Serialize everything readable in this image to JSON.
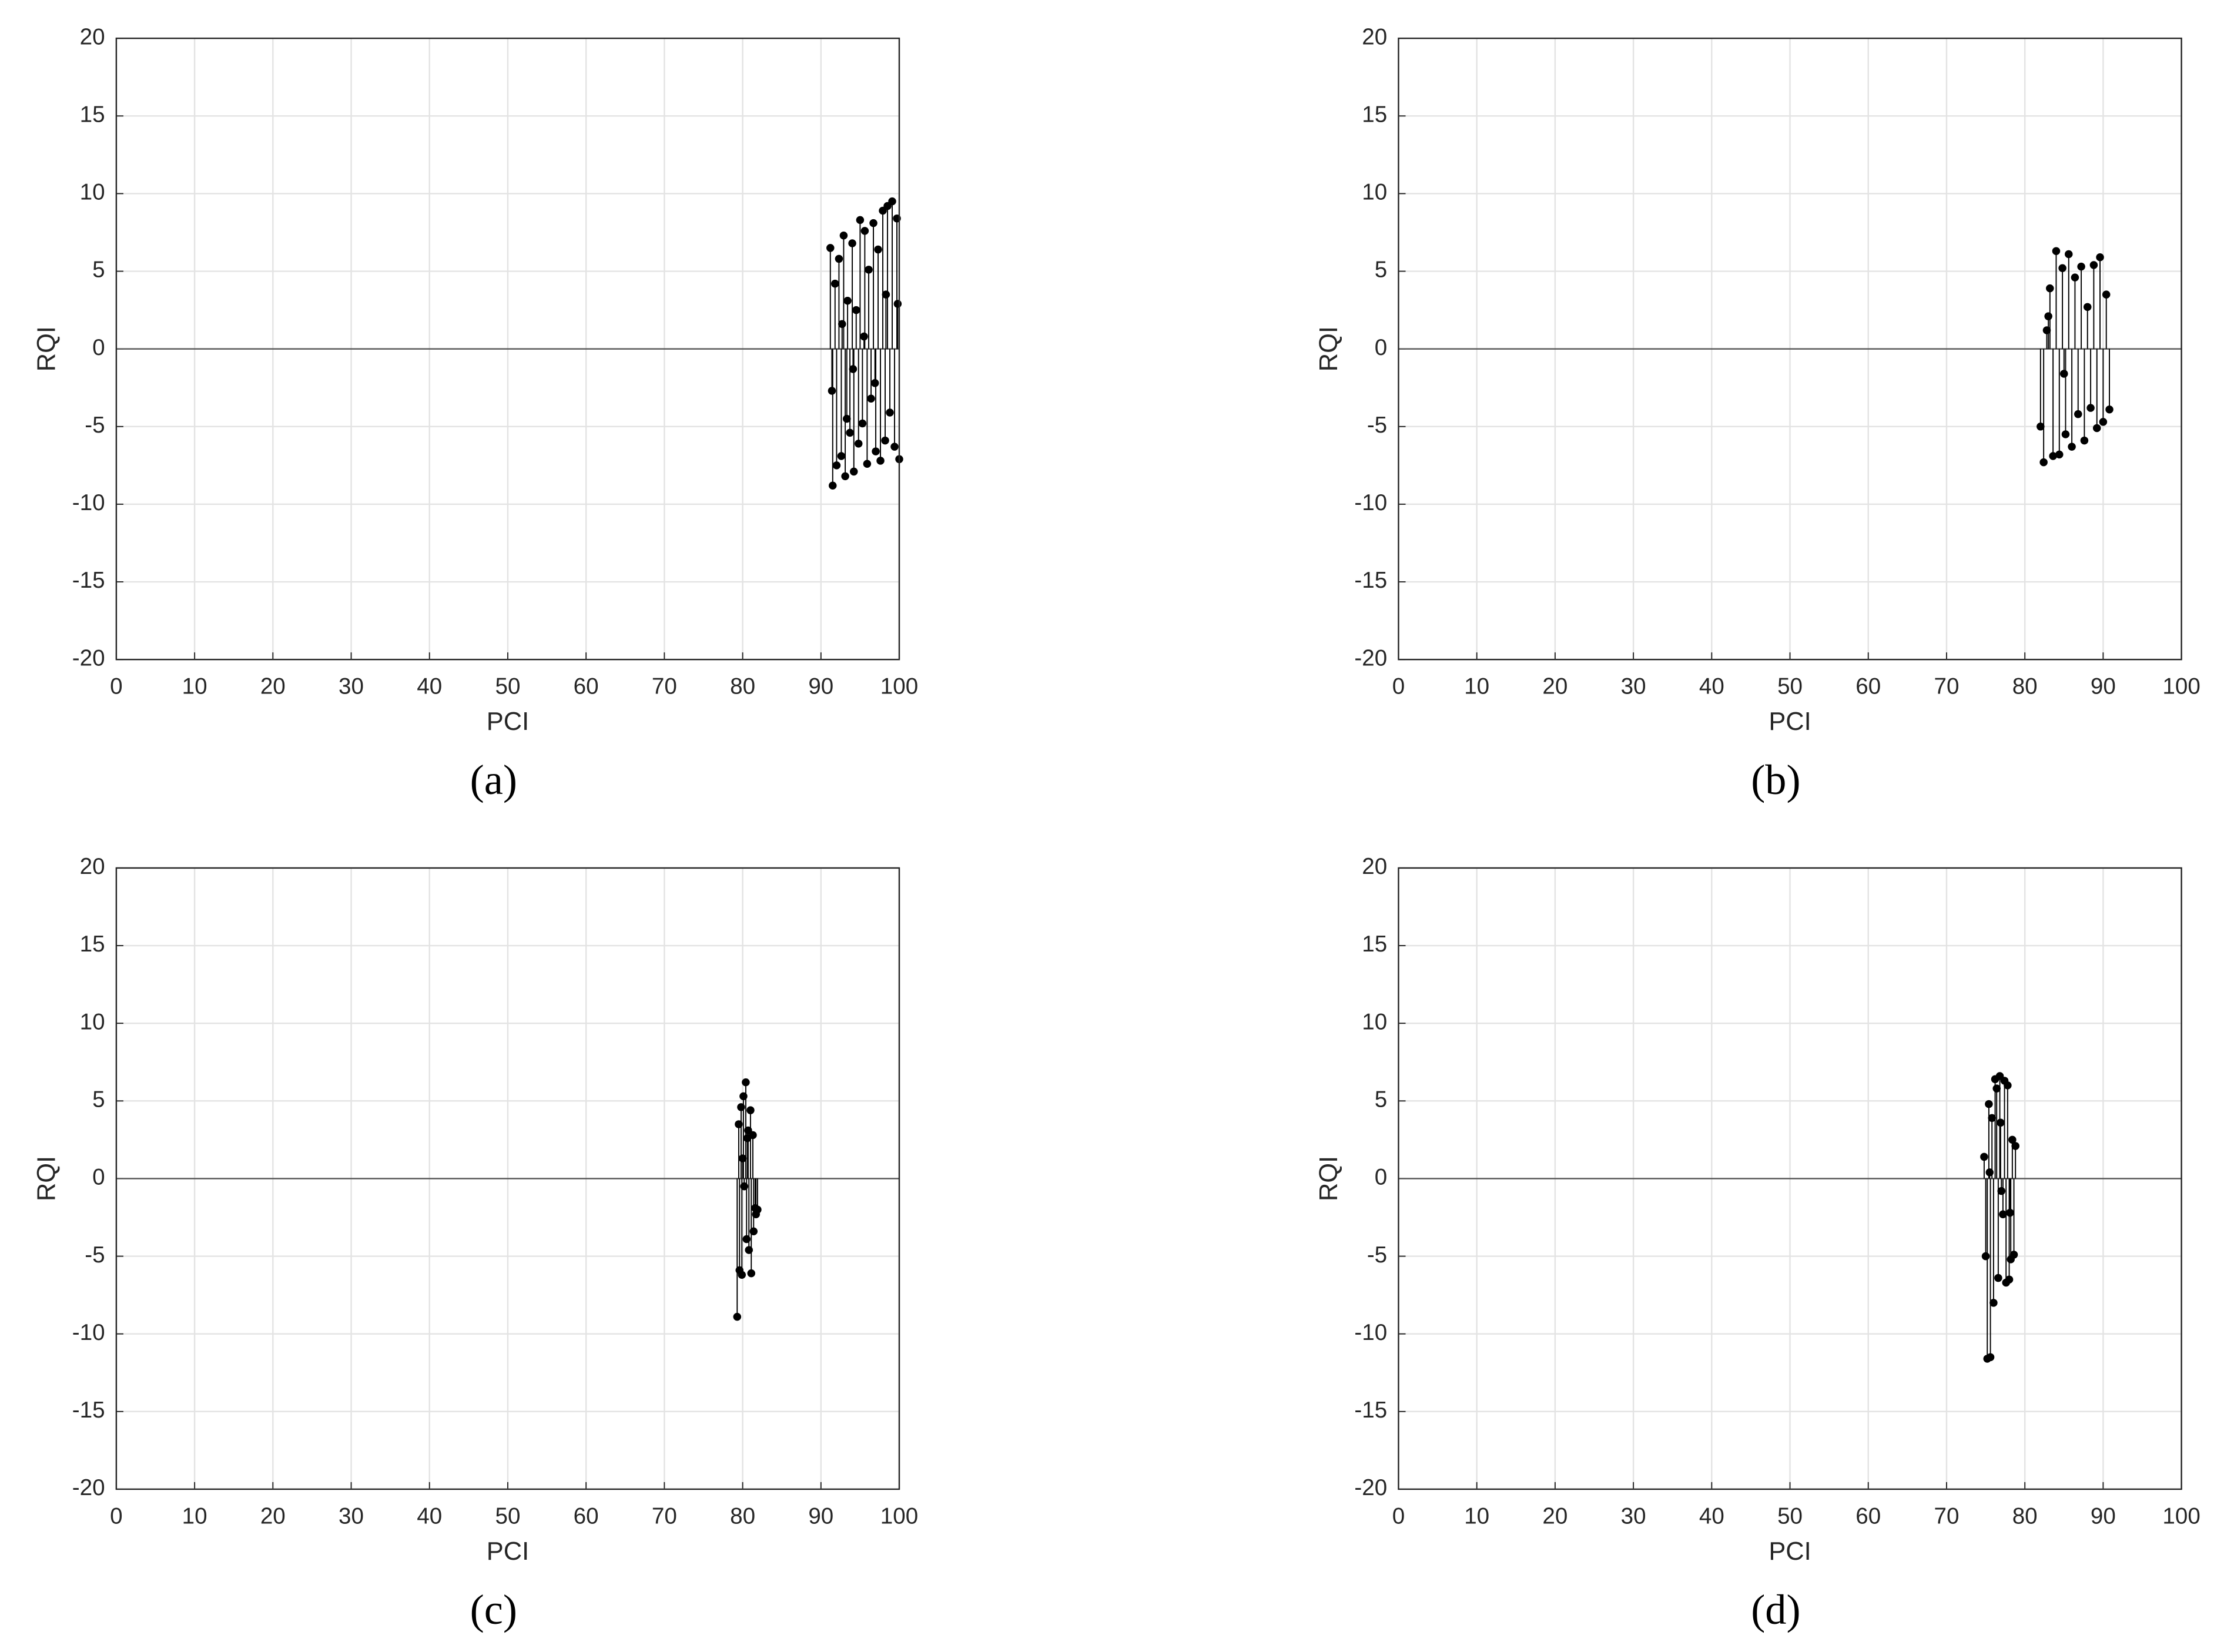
{
  "chart_data": [
    {
      "type": "stem",
      "caption": "(a)",
      "xlabel": "PCI",
      "ylabel": "RQI",
      "color": "#000000",
      "grid": true,
      "xlim": [
        0,
        100
      ],
      "ylim": [
        -20,
        20
      ],
      "xticks": [
        0,
        10,
        20,
        30,
        40,
        50,
        60,
        70,
        80,
        90,
        100
      ],
      "yticks": [
        -20,
        -15,
        -10,
        -5,
        0,
        5,
        10,
        15,
        20
      ],
      "x": [
        91.2,
        91.5,
        91.8,
        92.0,
        92.3,
        92.6,
        92.9,
        93.1,
        93.4,
        93.7,
        94.0,
        94.2,
        94.5,
        94.8,
        95.0,
        95.3,
        95.6,
        95.9,
        96.1,
        96.4,
        96.7,
        97.0,
        97.3,
        97.6,
        97.9,
        98.2,
        98.5,
        98.8,
        99.1,
        99.4,
        99.7,
        100,
        91.4,
        92.7,
        94.1,
        95.5,
        96.9,
        98.3,
        99.8,
        93.3
      ],
      "values": [
        6.5,
        -8.8,
        4.2,
        -7.5,
        5.8,
        -6.9,
        7.3,
        -8.2,
        3.1,
        -5.4,
        6.8,
        -7.9,
        2.5,
        -6.1,
        8.3,
        -4.8,
        7.6,
        -7.4,
        5.1,
        -3.2,
        8.1,
        -6.6,
        6.4,
        -7.2,
        8.9,
        -5.9,
        9.2,
        -4.1,
        9.5,
        -6.3,
        8.4,
        -7.1,
        -2.7,
        1.6,
        -1.3,
        0.8,
        -2.2,
        3.5,
        2.9,
        -4.5
      ]
    },
    {
      "type": "stem",
      "caption": "(b)",
      "xlabel": "PCI",
      "ylabel": "RQI",
      "color": "#000000",
      "grid": true,
      "xlim": [
        0,
        100
      ],
      "ylim": [
        -20,
        20
      ],
      "xticks": [
        0,
        10,
        20,
        30,
        40,
        50,
        60,
        70,
        80,
        90,
        100
      ],
      "yticks": [
        -20,
        -15,
        -10,
        -5,
        0,
        5,
        10,
        15,
        20
      ],
      "x": [
        82.0,
        82.4,
        82.8,
        83.2,
        83.6,
        84.0,
        84.4,
        84.8,
        85.2,
        85.6,
        86.0,
        86.4,
        86.8,
        87.2,
        87.6,
        88.0,
        88.4,
        88.8,
        89.2,
        89.6,
        90.0,
        90.4,
        90.8,
        83.0,
        85.0
      ],
      "values": [
        -5.0,
        -7.3,
        1.2,
        3.9,
        -6.9,
        6.3,
        -6.8,
        5.2,
        -5.5,
        6.1,
        -6.3,
        4.6,
        -4.2,
        5.3,
        -5.9,
        2.7,
        -3.8,
        5.4,
        -5.1,
        5.9,
        -4.7,
        3.5,
        -3.9,
        2.1,
        -1.6
      ]
    },
    {
      "type": "stem",
      "caption": "(c)",
      "xlabel": "PCI",
      "ylabel": "RQI",
      "color": "#000000",
      "grid": true,
      "xlim": [
        0,
        100
      ],
      "ylim": [
        -20,
        20
      ],
      "xticks": [
        0,
        10,
        20,
        30,
        40,
        50,
        60,
        70,
        80,
        90,
        100
      ],
      "yticks": [
        -20,
        -15,
        -10,
        -5,
        0,
        5,
        10,
        15,
        20
      ],
      "x": [
        79.3,
        79.5,
        79.6,
        79.8,
        79.9,
        80.1,
        80.2,
        80.4,
        80.5,
        80.7,
        80.8,
        81.0,
        81.1,
        81.3,
        81.4,
        81.6,
        81.7,
        81.9,
        80.0,
        80.6
      ],
      "values": [
        -8.9,
        3.5,
        -5.9,
        4.6,
        -6.2,
        5.3,
        -0.5,
        6.2,
        -3.9,
        3.1,
        -4.6,
        4.4,
        -6.1,
        2.8,
        -3.4,
        -1.9,
        -2.3,
        -2.0,
        1.3,
        2.6
      ]
    },
    {
      "type": "stem",
      "caption": "(d)",
      "xlabel": "PCI",
      "ylabel": "RQI",
      "color": "#000000",
      "grid": true,
      "xlim": [
        0,
        100
      ],
      "ylim": [
        -20,
        20
      ],
      "xticks": [
        0,
        10,
        20,
        30,
        40,
        50,
        60,
        70,
        80,
        90,
        100
      ],
      "yticks": [
        -20,
        -15,
        -10,
        -5,
        0,
        5,
        10,
        15,
        20
      ],
      "x": [
        74.8,
        75.0,
        75.2,
        75.4,
        75.6,
        75.8,
        76.0,
        76.2,
        76.4,
        76.6,
        76.8,
        77.0,
        77.2,
        77.4,
        77.6,
        77.8,
        78.0,
        78.2,
        78.4,
        78.6,
        78.8,
        75.5,
        76.9,
        78.1
      ],
      "values": [
        1.4,
        -5.0,
        -11.6,
        4.8,
        -11.5,
        3.9,
        -8.0,
        6.4,
        5.8,
        -6.4,
        6.6,
        -0.8,
        -2.3,
        6.3,
        -6.7,
        6.0,
        -6.5,
        -5.2,
        2.5,
        -4.9,
        2.1,
        0.4,
        3.6,
        -2.2
      ]
    }
  ]
}
